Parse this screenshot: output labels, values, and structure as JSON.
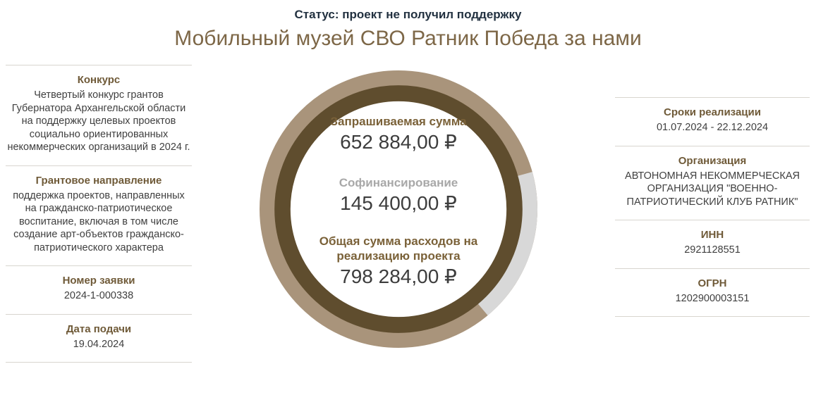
{
  "page": {
    "status": "Статус: проект не получил поддержку",
    "title": "Мобильный музей СВО Ратник Победа за нами"
  },
  "left_sidebar": {
    "sections": [
      {
        "label": "Конкурс",
        "value": "Четвертый конкурс грантов Губернатора Архангельской области на поддержку целевых проектов социально ориентированных некоммерческих организаций в 2024 г."
      },
      {
        "label": "Грантовое направление",
        "value": "поддержка проектов, направленных на гражданско-патриотическое воспитание, включая в том числе создание арт-объектов гражданско-патриотического характера"
      },
      {
        "label": "Номер заявки",
        "value": "2024-1-000338"
      },
      {
        "label": "Дата подачи",
        "value": "19.04.2024"
      }
    ]
  },
  "right_sidebar": {
    "sections": [
      {
        "label": "Сроки реализации",
        "value": "01.07.2024 - 22.12.2024"
      },
      {
        "label": "Организация",
        "value": "АВТОНОМНАЯ НЕКОММЕРЧЕСКАЯ ОРГАНИЗАЦИЯ \"ВОЕННО-ПАТРИОТИЧЕСКИЙ КЛУБ РАТНИК\""
      },
      {
        "label": "ИНН",
        "value": "2921128551"
      },
      {
        "label": "ОГРН",
        "value": "1202900003151"
      }
    ]
  },
  "chart_data": {
    "type": "pie",
    "subtype": "donut",
    "labels": [
      "Запрашиваемая сумма",
      "Софинансирование"
    ],
    "values": [
      652884.0,
      145400.0
    ],
    "total": {
      "label": "Общая сумма расходов на реализацию проекта",
      "value": 798284.0
    },
    "segment_colors": [
      "#a9947b",
      "#d8d8d8"
    ],
    "inner_ring_color": "#5f4d2e",
    "legend_position": "none",
    "geometry": {
      "cofinancing_end_deg": 140
    },
    "display": {
      "requested_label": "Запрашиваемая сумма",
      "requested_value": "652 884,00 ₽",
      "cofinancing_label": "Софинансирование",
      "cofinancing_value": "145 400,00 ₽",
      "total_label": "Общая сумма расходов на реализацию проекта",
      "total_value": "798 284,00 ₽"
    }
  },
  "colors": {
    "status_text": "#223140",
    "title_text": "#7d6747",
    "section_heading": "#6f5a38",
    "body_text": "#3f3f3f",
    "value_text": "#3d3d3d",
    "muted_label": "#a8a8a8",
    "divider": "#d8d5cf",
    "background": "#ffffff"
  }
}
